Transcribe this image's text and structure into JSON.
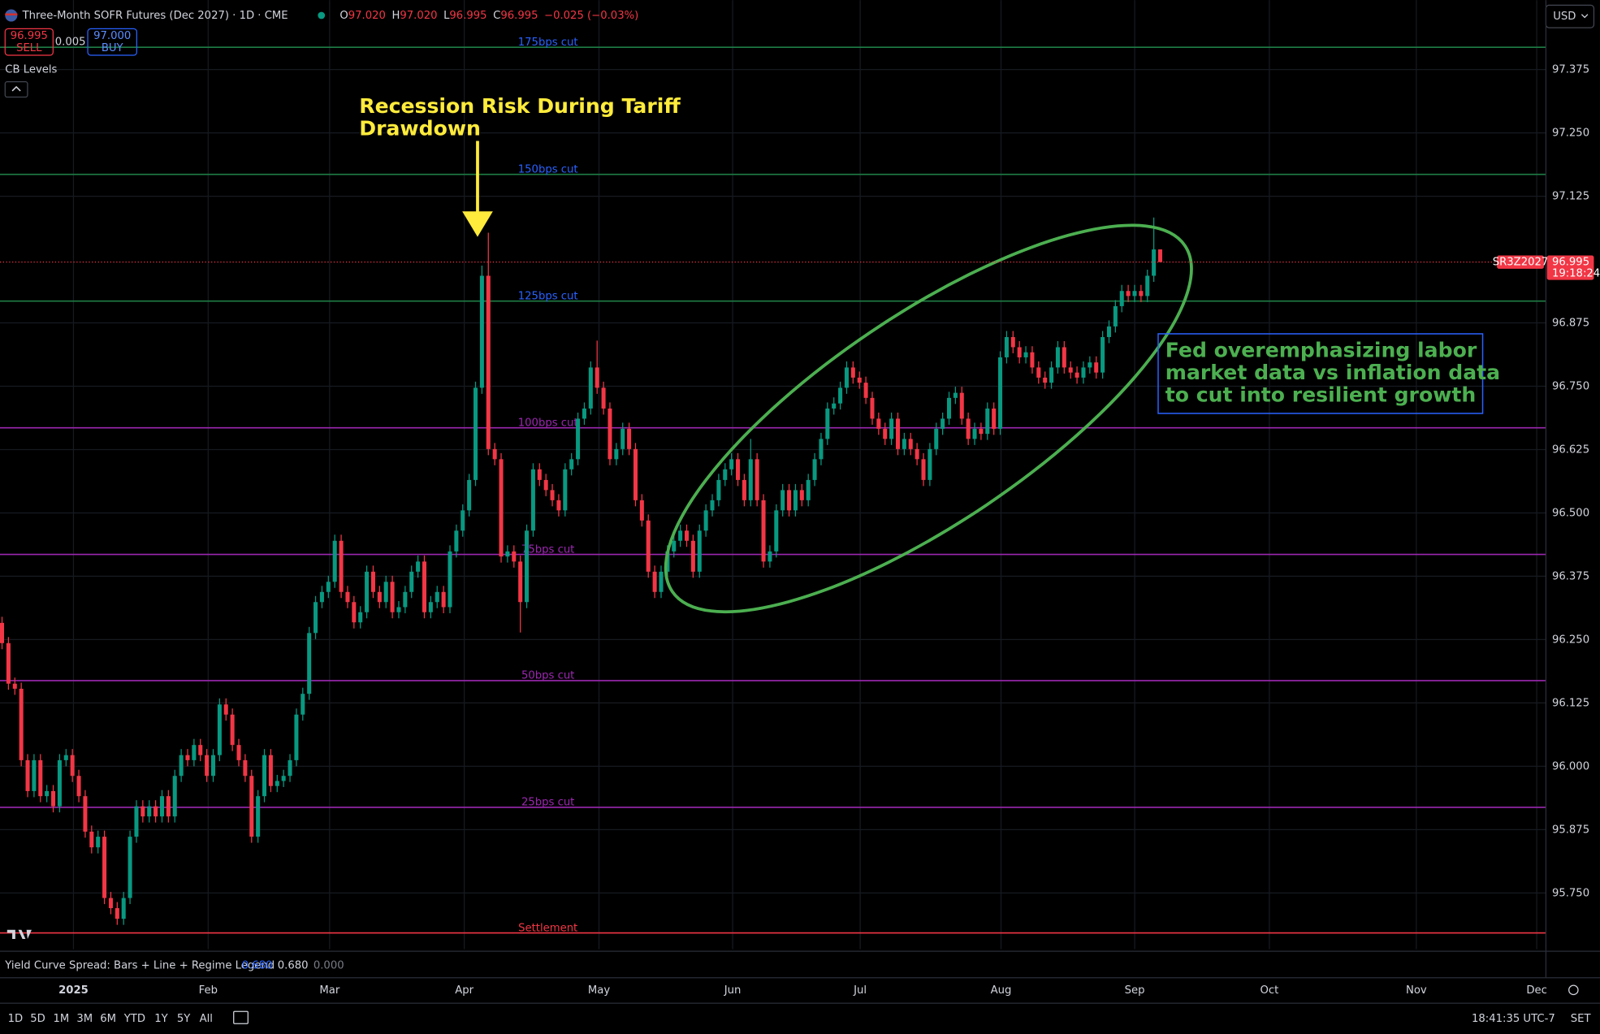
{
  "header": {
    "title": "Three-Month SOFR Futures (Dec 2027) · 1D · CME",
    "ohlc": [
      {
        "label": "O",
        "value": "97.020"
      },
      {
        "label": "H",
        "value": "97.020"
      },
      {
        "label": "L",
        "value": "96.995"
      },
      {
        "label": "C",
        "value": "96.995"
      }
    ],
    "change": "−0.025 (−0.03%)",
    "sell_price": "96.995",
    "sell_label": "SELL",
    "spread": "0.005",
    "buy_price": "97.000",
    "buy_label": "BUY",
    "indicator": "CB Levels",
    "currency": "USD"
  },
  "chart_data": {
    "type": "candlestick",
    "up_color": "#089981",
    "down_color": "#f23645",
    "ylim": [
      95.639,
      97.512
    ],
    "yticks": [
      97.375,
      {
        "value": 97.25,
        "label": "97.250"
      },
      97.125,
      96.875,
      {
        "value": 96.75,
        "label": "96.750"
      },
      96.625,
      {
        "value": 96.5,
        "label": "96.500"
      },
      96.375,
      {
        "value": 96.25,
        "label": "96.250"
      },
      96.125,
      {
        "value": 96,
        "label": "96.000"
      },
      95.875,
      {
        "value": 95.75,
        "label": "95.750"
      }
    ],
    "grid": true,
    "x_axis_labels": [
      "2025",
      "Feb",
      "Mar",
      "Apr",
      "May",
      "Jun",
      "Jul",
      "Aug",
      "Sep",
      "Oct",
      "Nov",
      "Dec"
    ],
    "levels": [
      {
        "label": "175bps cut",
        "value": 97.419,
        "color": "#1e7d45",
        "label_color": "#2962ff"
      },
      {
        "label": "150bps cut",
        "value": 97.168,
        "color": "#1e7d45",
        "label_color": "#2962ff"
      },
      {
        "label": "125bps cut",
        "value": 96.918,
        "color": "#1e7d45",
        "label_color": "#2962ff"
      },
      {
        "label": "100bps cut",
        "value": 96.668,
        "color": "#9c27b0",
        "label_color": "#9c27b0"
      },
      {
        "label": "75bps cut",
        "value": 96.418,
        "color": "#9c27b0",
        "label_color": "#9c27b0"
      },
      {
        "label": "50bps cut",
        "value": 96.169,
        "color": "#9c27b0",
        "label_color": "#9c27b0"
      },
      {
        "label": "25bps cut",
        "value": 95.919,
        "color": "#9c27b0",
        "label_color": "#9c27b0"
      },
      {
        "label": "Settlement",
        "value": 95.671,
        "color": "#f23645",
        "label_color": "#f23645"
      }
    ],
    "last_price": 96.995,
    "symbol": "SR3Z2027",
    "countdown": "19:18:24",
    "annotations": [
      {
        "lines": [
          "Recession Risk During Tariff",
          "Drawdown"
        ],
        "color": "#ffeb3b"
      },
      {
        "lines": [
          "Fed overemphasizing labor",
          "market data vs inflation data",
          "to cut into resilient growth"
        ],
        "color": "#4caf50"
      }
    ],
    "candles": [
      [
        96.283,
        96.295,
        96.231,
        96.243
      ],
      [
        96.243,
        96.255,
        96.151,
        96.163
      ],
      [
        96.163,
        96.175,
        96.141,
        96.153
      ],
      [
        96.153,
        96.165,
        96.0,
        96.012
      ],
      [
        96.012,
        96.024,
        95.939,
        95.951
      ],
      [
        95.951,
        96.024,
        95.939,
        96.012
      ],
      [
        96.012,
        96.024,
        95.929,
        95.941
      ],
      [
        95.941,
        95.963,
        95.929,
        95.951
      ],
      [
        95.951,
        95.963,
        95.909,
        95.921
      ],
      [
        95.921,
        96.024,
        95.909,
        96.012
      ],
      [
        96.012,
        96.034,
        96.0,
        96.022
      ],
      [
        96.022,
        96.034,
        95.969,
        95.981
      ],
      [
        95.981,
        95.993,
        95.929,
        95.941
      ],
      [
        95.941,
        95.953,
        95.859,
        95.871
      ],
      [
        95.871,
        95.883,
        95.828,
        95.84
      ],
      [
        95.84,
        95.873,
        95.828,
        95.861
      ],
      [
        95.861,
        95.873,
        95.728,
        95.74
      ],
      [
        95.74,
        95.752,
        95.708,
        95.72
      ],
      [
        95.72,
        95.732,
        95.687,
        95.699
      ],
      [
        95.699,
        95.752,
        95.687,
        95.74
      ],
      [
        95.74,
        95.873,
        95.728,
        95.861
      ],
      [
        95.861,
        95.933,
        95.849,
        95.921
      ],
      [
        95.921,
        95.933,
        95.889,
        95.901
      ],
      [
        95.901,
        95.933,
        95.889,
        95.921
      ],
      [
        95.921,
        95.933,
        95.889,
        95.901
      ],
      [
        95.901,
        95.953,
        95.889,
        95.941
      ],
      [
        95.941,
        95.953,
        95.889,
        95.901
      ],
      [
        95.901,
        95.993,
        95.889,
        95.981
      ],
      [
        95.981,
        96.034,
        95.969,
        96.022
      ],
      [
        96.022,
        96.034,
        96.0,
        96.012
      ],
      [
        96.012,
        96.054,
        96.0,
        96.042
      ],
      [
        96.042,
        96.054,
        96.01,
        96.022
      ],
      [
        96.022,
        96.034,
        95.969,
        95.981
      ],
      [
        95.981,
        96.034,
        95.969,
        96.022
      ],
      [
        96.022,
        96.134,
        96.01,
        96.122
      ],
      [
        96.122,
        96.134,
        96.09,
        96.102
      ],
      [
        96.102,
        96.114,
        96.03,
        96.042
      ],
      [
        96.042,
        96.054,
        96.0,
        96.012
      ],
      [
        96.012,
        96.024,
        95.969,
        95.981
      ],
      [
        95.981,
        95.993,
        95.849,
        95.861
      ],
      [
        95.861,
        95.953,
        95.849,
        95.941
      ],
      [
        95.941,
        96.034,
        95.929,
        96.022
      ],
      [
        96.022,
        96.034,
        95.949,
        95.961
      ],
      [
        95.961,
        95.983,
        95.949,
        95.971
      ],
      [
        95.971,
        95.993,
        95.959,
        95.981
      ],
      [
        95.981,
        96.024,
        95.969,
        96.012
      ],
      [
        96.012,
        96.114,
        96.0,
        96.102
      ],
      [
        96.102,
        96.155,
        96.09,
        96.143
      ],
      [
        96.143,
        96.275,
        96.131,
        96.263
      ],
      [
        96.263,
        96.336,
        96.251,
        96.324
      ],
      [
        96.324,
        96.356,
        96.312,
        96.344
      ],
      [
        96.344,
        96.376,
        96.332,
        96.364
      ],
      [
        96.364,
        96.457,
        96.352,
        96.445
      ],
      [
        96.445,
        96.457,
        96.332,
        96.344
      ],
      [
        96.344,
        96.356,
        96.312,
        96.324
      ],
      [
        96.324,
        96.336,
        96.272,
        96.284
      ],
      [
        96.284,
        96.316,
        96.272,
        96.304
      ],
      [
        96.304,
        96.396,
        96.292,
        96.384
      ],
      [
        96.384,
        96.396,
        96.332,
        96.344
      ],
      [
        96.344,
        96.356,
        96.312,
        96.324
      ],
      [
        96.324,
        96.376,
        96.312,
        96.364
      ],
      [
        96.364,
        96.376,
        96.292,
        96.304
      ],
      [
        96.304,
        96.326,
        96.292,
        96.314
      ],
      [
        96.314,
        96.356,
        96.302,
        96.344
      ],
      [
        96.344,
        96.396,
        96.332,
        96.384
      ],
      [
        96.384,
        96.416,
        96.372,
        96.404
      ],
      [
        96.404,
        96.416,
        96.292,
        96.304
      ],
      [
        96.304,
        96.336,
        96.292,
        96.324
      ],
      [
        96.324,
        96.356,
        96.312,
        96.344
      ],
      [
        96.344,
        96.356,
        96.302,
        96.314
      ],
      [
        96.314,
        96.436,
        96.302,
        96.424
      ],
      [
        96.424,
        96.477,
        96.412,
        96.465
      ],
      [
        96.465,
        96.517,
        96.453,
        96.505
      ],
      [
        96.505,
        96.577,
        96.493,
        96.565
      ],
      [
        96.565,
        96.759,
        96.553,
        96.747
      ],
      [
        96.747,
        96.988,
        96.735,
        96.968
      ],
      [
        96.968,
        97.053,
        96.614,
        96.626
      ],
      [
        96.626,
        96.638,
        96.594,
        96.606
      ],
      [
        96.606,
        96.618,
        96.402,
        96.414
      ],
      [
        96.414,
        96.436,
        96.402,
        96.424
      ],
      [
        96.424,
        96.436,
        96.392,
        96.404
      ],
      [
        96.404,
        96.416,
        96.264,
        96.324
      ],
      [
        96.324,
        96.477,
        96.312,
        96.465
      ],
      [
        96.465,
        96.598,
        96.453,
        96.586
      ],
      [
        96.586,
        96.598,
        96.553,
        96.565
      ],
      [
        96.565,
        96.577,
        96.533,
        96.545
      ],
      [
        96.545,
        96.557,
        96.513,
        96.525
      ],
      [
        96.525,
        96.537,
        96.493,
        96.505
      ],
      [
        96.505,
        96.598,
        96.493,
        96.586
      ],
      [
        96.586,
        96.618,
        96.574,
        96.606
      ],
      [
        96.606,
        96.698,
        96.594,
        96.686
      ],
      [
        96.686,
        96.718,
        96.674,
        96.706
      ],
      [
        96.706,
        96.799,
        96.694,
        96.787
      ],
      [
        96.787,
        96.84,
        96.735,
        96.747
      ],
      [
        96.747,
        96.759,
        96.694,
        96.706
      ],
      [
        96.706,
        96.718,
        96.594,
        96.606
      ],
      [
        96.606,
        96.638,
        96.594,
        96.626
      ],
      [
        96.626,
        96.678,
        96.614,
        96.666
      ],
      [
        96.666,
        96.678,
        96.614,
        96.626
      ],
      [
        96.626,
        96.638,
        96.513,
        96.525
      ],
      [
        96.525,
        96.537,
        96.473,
        96.485
      ],
      [
        96.485,
        96.497,
        96.372,
        96.384
      ],
      [
        96.384,
        96.396,
        96.332,
        96.344
      ],
      [
        96.344,
        96.396,
        96.332,
        96.384
      ],
      [
        96.384,
        96.436,
        96.372,
        96.424
      ],
      [
        96.424,
        96.457,
        96.412,
        96.445
      ],
      [
        96.445,
        96.477,
        96.433,
        96.465
      ],
      [
        96.465,
        96.477,
        96.433,
        96.445
      ],
      [
        96.445,
        96.457,
        96.372,
        96.384
      ],
      [
        96.384,
        96.477,
        96.372,
        96.465
      ],
      [
        96.465,
        96.517,
        96.453,
        96.505
      ],
      [
        96.505,
        96.537,
        96.493,
        96.525
      ],
      [
        96.525,
        96.577,
        96.513,
        96.565
      ],
      [
        96.565,
        96.598,
        96.553,
        96.586
      ],
      [
        96.586,
        96.618,
        96.574,
        96.606
      ],
      [
        96.606,
        96.618,
        96.553,
        96.565
      ],
      [
        96.565,
        96.577,
        96.513,
        96.525
      ],
      [
        96.525,
        96.646,
        96.513,
        96.606
      ],
      [
        96.606,
        96.618,
        96.513,
        96.525
      ],
      [
        96.525,
        96.537,
        96.392,
        96.404
      ],
      [
        96.404,
        96.436,
        96.392,
        96.424
      ],
      [
        96.424,
        96.517,
        96.412,
        96.505
      ],
      [
        96.505,
        96.557,
        96.493,
        96.545
      ],
      [
        96.545,
        96.557,
        96.493,
        96.505
      ],
      [
        96.505,
        96.557,
        96.493,
        96.545
      ],
      [
        96.545,
        96.557,
        96.513,
        96.525
      ],
      [
        96.525,
        96.577,
        96.513,
        96.565
      ],
      [
        96.565,
        96.618,
        96.553,
        96.606
      ],
      [
        96.606,
        96.658,
        96.594,
        96.646
      ],
      [
        96.646,
        96.718,
        96.634,
        96.706
      ],
      [
        96.706,
        96.728,
        96.694,
        96.716
      ],
      [
        96.716,
        96.759,
        96.704,
        96.747
      ],
      [
        96.747,
        96.799,
        96.735,
        96.787
      ],
      [
        96.787,
        96.799,
        96.755,
        96.767
      ],
      [
        96.767,
        96.779,
        96.745,
        96.757
      ],
      [
        96.757,
        96.769,
        96.715,
        96.727
      ],
      [
        96.727,
        96.739,
        96.674,
        96.686
      ],
      [
        96.686,
        96.698,
        96.654,
        96.666
      ],
      [
        96.666,
        96.678,
        96.634,
        96.646
      ],
      [
        96.646,
        96.698,
        96.634,
        96.686
      ],
      [
        96.686,
        96.698,
        96.614,
        96.626
      ],
      [
        96.626,
        96.658,
        96.614,
        96.646
      ],
      [
        96.646,
        96.658,
        96.614,
        96.626
      ],
      [
        96.626,
        96.638,
        96.594,
        96.606
      ],
      [
        96.606,
        96.618,
        96.553,
        96.565
      ],
      [
        96.565,
        96.638,
        96.553,
        96.626
      ],
      [
        96.626,
        96.678,
        96.614,
        96.666
      ],
      [
        96.666,
        96.698,
        96.654,
        96.686
      ],
      [
        96.686,
        96.739,
        96.674,
        96.727
      ],
      [
        96.727,
        96.749,
        96.715,
        96.737
      ],
      [
        96.737,
        96.749,
        96.674,
        96.686
      ],
      [
        96.686,
        96.698,
        96.634,
        96.646
      ],
      [
        96.646,
        96.678,
        96.634,
        96.666
      ],
      [
        96.666,
        96.678,
        96.644,
        96.656
      ],
      [
        96.656,
        96.718,
        96.644,
        96.706
      ],
      [
        96.706,
        96.718,
        96.654,
        96.666
      ],
      [
        96.666,
        96.819,
        96.654,
        96.807
      ],
      [
        96.807,
        96.859,
        96.795,
        96.847
      ],
      [
        96.847,
        96.859,
        96.815,
        96.827
      ],
      [
        96.827,
        96.839,
        96.795,
        96.807
      ],
      [
        96.807,
        96.829,
        96.795,
        96.817
      ],
      [
        96.817,
        96.829,
        96.775,
        96.787
      ],
      [
        96.787,
        96.799,
        96.755,
        96.767
      ],
      [
        96.767,
        96.779,
        96.745,
        96.757
      ],
      [
        96.757,
        96.799,
        96.745,
        96.787
      ],
      [
        96.787,
        96.839,
        96.775,
        96.827
      ],
      [
        96.827,
        96.839,
        96.775,
        96.787
      ],
      [
        96.787,
        96.799,
        96.765,
        96.777
      ],
      [
        96.777,
        96.789,
        96.755,
        96.767
      ],
      [
        96.767,
        96.799,
        96.755,
        96.787
      ],
      [
        96.787,
        96.809,
        96.775,
        96.797
      ],
      [
        96.797,
        96.809,
        96.765,
        96.777
      ],
      [
        96.777,
        96.859,
        96.765,
        96.847
      ],
      [
        96.847,
        96.88,
        96.835,
        96.868
      ],
      [
        96.868,
        96.92,
        96.856,
        96.908
      ],
      [
        96.908,
        96.95,
        96.896,
        96.938
      ],
      [
        96.938,
        96.95,
        96.916,
        96.928
      ],
      [
        96.928,
        96.95,
        96.916,
        96.938
      ],
      [
        96.938,
        96.95,
        96.916,
        96.928
      ],
      [
        96.928,
        96.98,
        96.916,
        96.968
      ],
      [
        96.968,
        97.083,
        96.956,
        97.02
      ],
      [
        97.02,
        97.02,
        96.995,
        96.995
      ]
    ]
  },
  "indicator_pane": {
    "name": "Yield Curve Spread: Bars + Line + Regime Legend",
    "values": [
      "0.680",
      "0.680",
      "0.000"
    ]
  },
  "toolbar": {
    "ranges": [
      "1D",
      "5D",
      "1M",
      "3M",
      "6M",
      "YTD",
      "1Y",
      "5Y",
      "All"
    ],
    "clock": "18:41:35 UTC-7",
    "timezone_button": "SET"
  }
}
